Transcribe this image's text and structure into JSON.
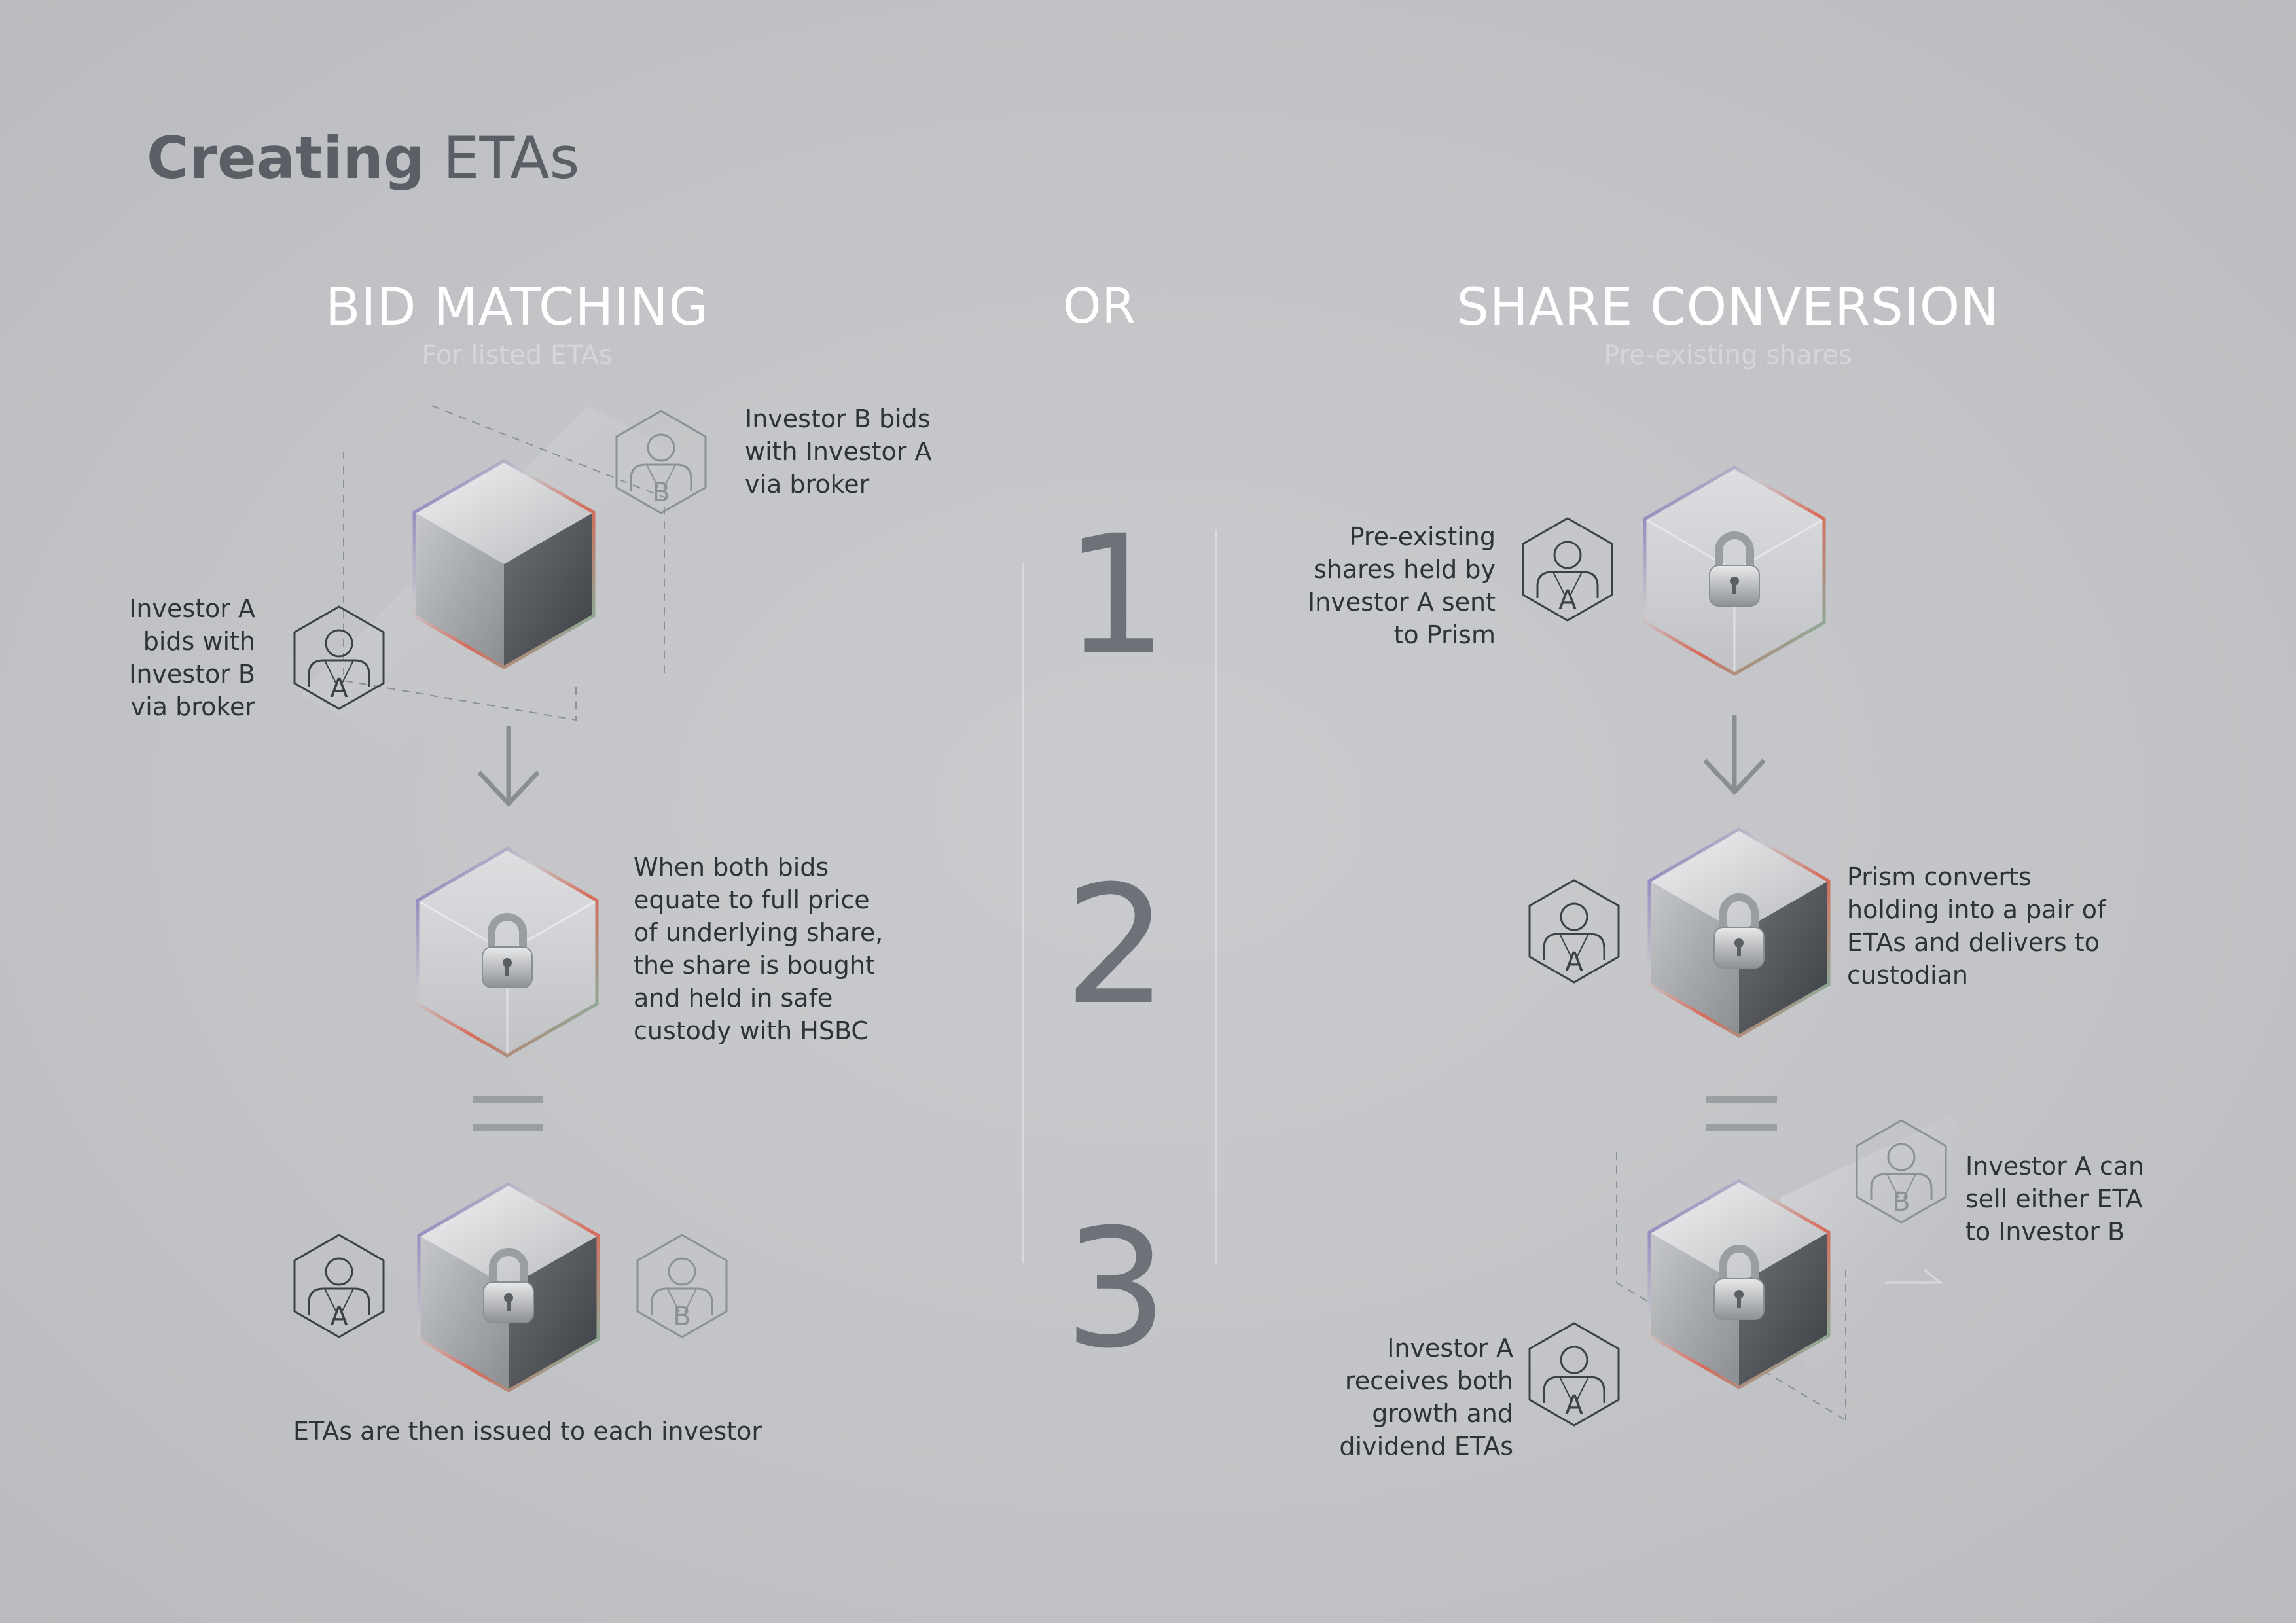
{
  "title": {
    "bold": "Creating",
    "rest": " ETAs"
  },
  "connector": "OR",
  "steps": [
    "1",
    "2",
    "3"
  ],
  "sections": {
    "bid_matching": {
      "title": "BID MATCHING",
      "subtitle": "For listed ETAs",
      "step1_label_b": "Investor B bids with Investor A via broker",
      "step1_label_a": "Investor A bids with Investor B via broker",
      "step2_label": "When both bids equate to full price of underlying share, the share is bought and held in safe custody with HSBC",
      "step3_label": "ETAs are then issued to each investor"
    },
    "share_conversion": {
      "title": "SHARE CONVERSION",
      "subtitle": "Pre-existing shares",
      "step1_label": "Pre-existing shares held by Investor A sent to Prism",
      "step2_label": "Prism converts holding into a pair of ETAs and delivers to custodian",
      "step3_label_b": "Investor A can sell either ETA to Investor B",
      "step3_label_a": "Investor A receives both growth and dividend ETAs"
    }
  },
  "avatar_letters": {
    "a": "A",
    "b": "B"
  },
  "icons": [
    "user-hexagon-icon",
    "padlock-icon",
    "down-arrow-icon",
    "equals-icon",
    "cube-icon"
  ],
  "colors": {
    "title": "#5b5f65",
    "heading": "#ffffff",
    "subheading": "#d4d6d9",
    "text": "#2f3338",
    "step": "#6e7278",
    "background": "#c4c6c9"
  }
}
